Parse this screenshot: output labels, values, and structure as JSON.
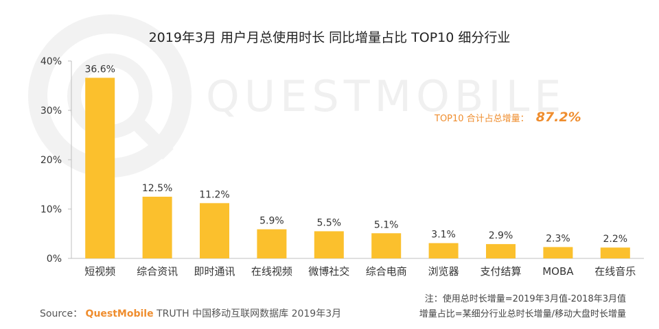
{
  "watermark": "QUESTMOBILE",
  "summary": {
    "label": "TOP10 合计占总增量：",
    "value": "87.2%"
  },
  "footer": {
    "source_label": "Source：",
    "brand": "QuestMobile",
    "source_text": "TRUTH 中国移动互联网数据库 2019年3月"
  },
  "notes": [
    "注：使用总时长增量=2019年3月值-2018年3月值",
    "增量占比=某细分行业总时长增量/移动大盘时长增量"
  ],
  "chart_data": {
    "type": "bar",
    "title": "2019年3月 用户月总使用时长 同比增量占比 TOP10 细分行业",
    "categories": [
      "短视频",
      "综合资讯",
      "即时通讯",
      "在线视频",
      "微博社交",
      "综合电商",
      "浏览器",
      "支付结算",
      "MOBA",
      "在线音乐"
    ],
    "values": [
      36.6,
      12.5,
      11.2,
      5.9,
      5.5,
      5.1,
      3.1,
      2.9,
      2.3,
      2.2
    ],
    "value_labels": [
      "36.6%",
      "12.5%",
      "11.2%",
      "5.9%",
      "5.5%",
      "5.1%",
      "3.1%",
      "2.9%",
      "2.3%",
      "2.2%"
    ],
    "ylim": [
      0,
      40
    ],
    "yticks": [
      0,
      10,
      20,
      30,
      40
    ],
    "ytick_labels": [
      "0%",
      "10%",
      "20%",
      "30%",
      "40%"
    ],
    "xlabel": "",
    "ylabel": "",
    "grid": false,
    "bar_color": "#fbc02d",
    "axis_color": "#bfbfbf"
  }
}
